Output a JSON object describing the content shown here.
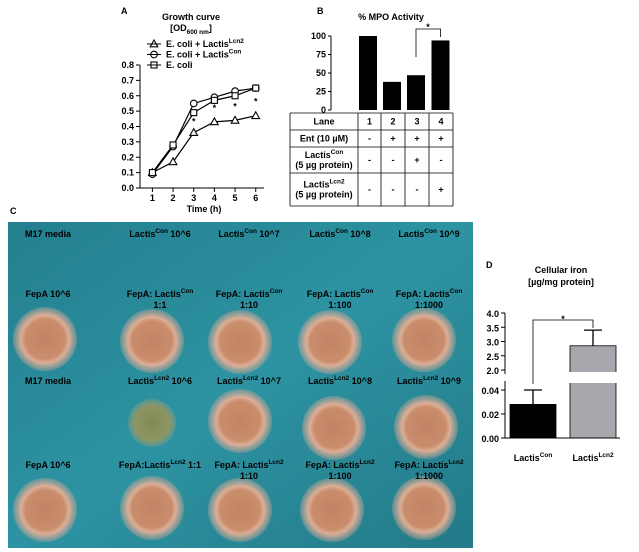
{
  "panel_labels": [
    "A",
    "B",
    "C",
    "D"
  ],
  "chart_data": [
    {
      "type": "line",
      "title": "Growth curve",
      "subtitle": [
        "[OD",
        "600 nm",
        "]"
      ],
      "x_label": "Time (h)",
      "x": [
        1,
        2,
        3,
        4,
        5,
        6
      ],
      "xlim": [
        0.4,
        6.4
      ],
      "xticks": [
        1,
        2,
        3,
        4,
        5,
        6
      ],
      "ylim": [
        0,
        0.8
      ],
      "yticks": [
        {
          "value": 0,
          "label": "0.0"
        },
        0.1,
        0.2,
        0.3,
        0.4,
        0.5,
        0.6,
        0.7,
        0.8
      ],
      "series": [
        {
          "name": [
            "E. coli + Lactis",
            "Lcn2"
          ],
          "marker": "triangle",
          "color": "#000000",
          "values": [
            0.1,
            0.17,
            0.36,
            0.43,
            0.44,
            0.47
          ]
        },
        {
          "name": [
            "E. coli + Lactis",
            "Con"
          ],
          "marker": "circle",
          "color": "#000000",
          "values": [
            0.09,
            0.27,
            0.55,
            0.59,
            0.63,
            0.65
          ]
        },
        {
          "name": [
            "E. coli"
          ],
          "marker": "square",
          "color": "#000000",
          "values": [
            0.1,
            0.28,
            0.49,
            0.57,
            0.6,
            0.65
          ]
        }
      ],
      "annotations": [
        {
          "x": 3,
          "text": "*"
        },
        {
          "x": 4,
          "text": "*"
        },
        {
          "x": 5,
          "text": "*"
        },
        {
          "x": 6,
          "text": "*"
        }
      ]
    },
    {
      "type": "bar",
      "title": "% MPO Activity",
      "values": [
        100,
        38,
        47,
        94
      ],
      "color": "#000000",
      "ylim": [
        0,
        100
      ],
      "yticks": [
        0,
        25,
        50,
        75,
        100
      ],
      "significance": "*"
    },
    {
      "type": "broken-bar",
      "title": "Cellular iron",
      "subtitle": "[µg/mg protein]",
      "categories": [
        [
          "Lactis",
          "Con"
        ],
        [
          "Lactis",
          "Lcn2"
        ]
      ],
      "values": [
        0.028,
        2.85
      ],
      "errors": [
        0.012,
        0.55
      ],
      "colors": [
        "#000000",
        "#a7a7ae"
      ],
      "segments": [
        {
          "ylim": [
            0,
            0.045
          ],
          "yticks": [
            {
              "value": 0,
              "label": "0.00"
            },
            {
              "value": 0.02,
              "label": "0.02"
            },
            {
              "value": 0.04,
              "label": "0.04"
            }
          ]
        },
        {
          "ylim": [
            2,
            4
          ],
          "yticks": [
            {
              "value": 2,
              "label": "2.0"
            },
            2.5,
            {
              "value": 3,
              "label": "3.0"
            },
            3.5,
            {
              "value": 4,
              "label": "4.0"
            }
          ]
        }
      ],
      "significance": "*"
    }
  ],
  "table": {
    "rows": [
      [
        "Lane",
        "1",
        "2",
        "3",
        "4"
      ],
      [
        "Ent (10 µM)",
        "-",
        "+",
        "+",
        "+"
      ],
      [
        [
          [
            "Lactis",
            "Con"
          ],
          [
            "(5 µg protein)"
          ]
        ],
        "-",
        "-",
        "+",
        "-"
      ],
      [
        [
          [
            "Lactis",
            "Lcn2"
          ],
          [
            "(5 µg protein)"
          ]
        ],
        "-",
        "-",
        "-",
        "+"
      ]
    ]
  },
  "photo": {
    "labels": [
      "M17 media",
      [
        "Lactis",
        "Con",
        " 10^6"
      ],
      [
        "Lactis",
        "Con",
        " 10^7"
      ],
      [
        "Lactis",
        "Con",
        " 10^8"
      ],
      [
        "Lactis",
        "Con",
        " 10^9"
      ],
      "FepA 10^6",
      [
        [
          "FepA: Lactis",
          "Con"
        ],
        [
          "1:1"
        ]
      ],
      [
        [
          "FepA: Lactis",
          "Con"
        ],
        [
          "1:10"
        ]
      ],
      [
        [
          "FepA: Lactis",
          "Con"
        ],
        [
          "1:100"
        ]
      ],
      [
        [
          "FepA: Lactis",
          "Con"
        ],
        [
          "1:1000"
        ]
      ],
      "M17 media",
      [
        "Lactis",
        "Lcn2",
        " 10^6"
      ],
      [
        "Lactis",
        "Lcn2",
        " 10^7"
      ],
      [
        "Lactis",
        "Lcn2",
        " 10^8"
      ],
      [
        "Lactis",
        "Lcn2",
        " 10^9"
      ],
      "FepA 10^6",
      [
        "FepA:Lactis",
        "Lcn2",
        " 1:1"
      ],
      [
        [
          "FepA: Lactis",
          "Lcn2"
        ],
        [
          "1:10"
        ]
      ],
      [
        [
          "FepA: Lactis",
          "Lcn2"
        ],
        [
          "1:100"
        ]
      ],
      [
        [
          "FepA: Lactis",
          "Lcn2"
        ],
        [
          "1:1000"
        ]
      ]
    ]
  }
}
